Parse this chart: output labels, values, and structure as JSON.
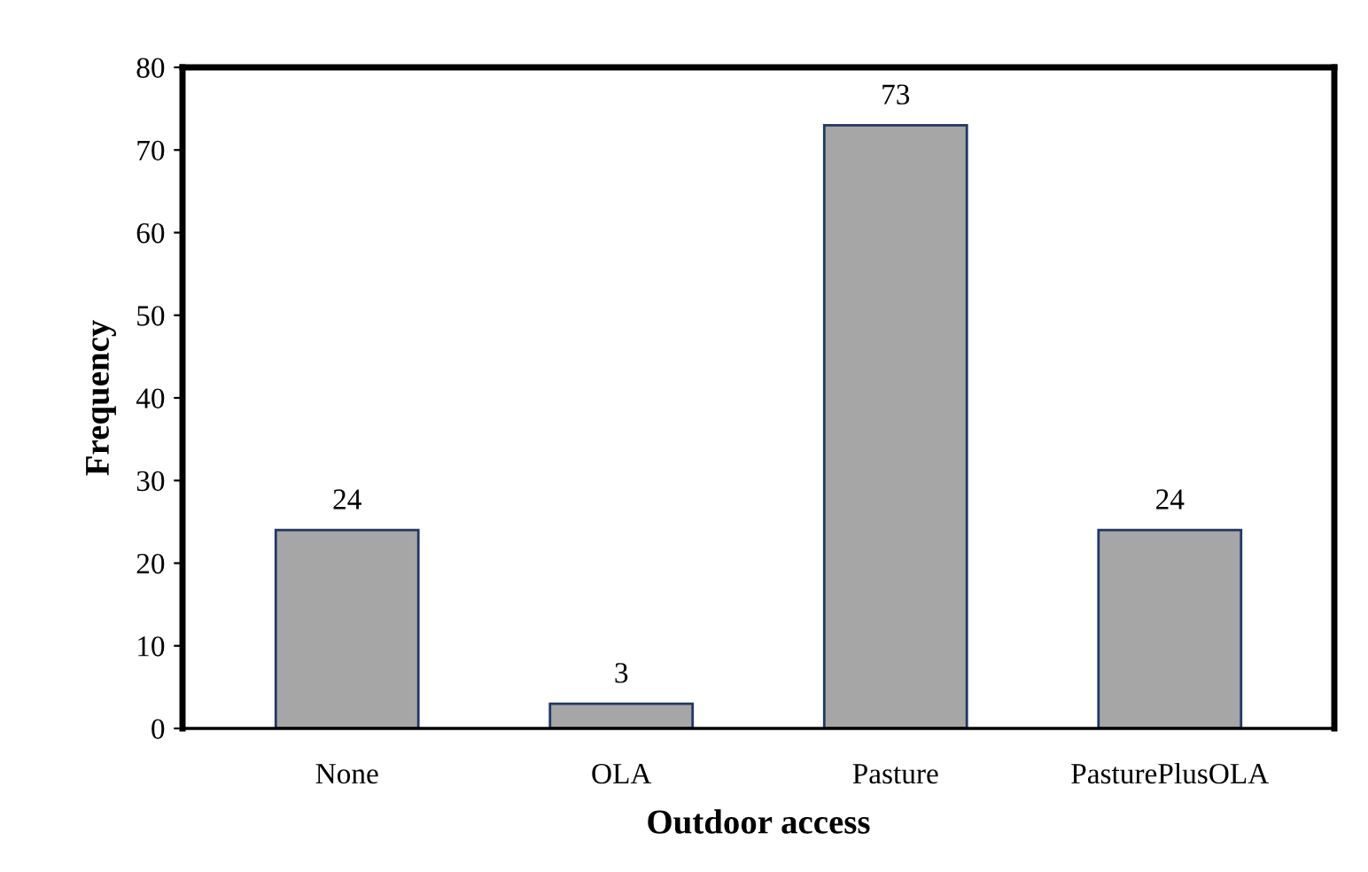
{
  "chart_data": {
    "type": "bar",
    "xlabel": "Outdoor access",
    "ylabel": "Frequency",
    "categories": [
      "None",
      "OLA",
      "Pasture",
      "PasturePlusOLA"
    ],
    "values": [
      24,
      3,
      73,
      24
    ],
    "color": "#a6a6a6",
    "ylim": [
      0,
      80
    ],
    "yticks": [
      0,
      10,
      20,
      30,
      40,
      50,
      60,
      70,
      80
    ],
    "grid": false,
    "data_labels": true
  }
}
